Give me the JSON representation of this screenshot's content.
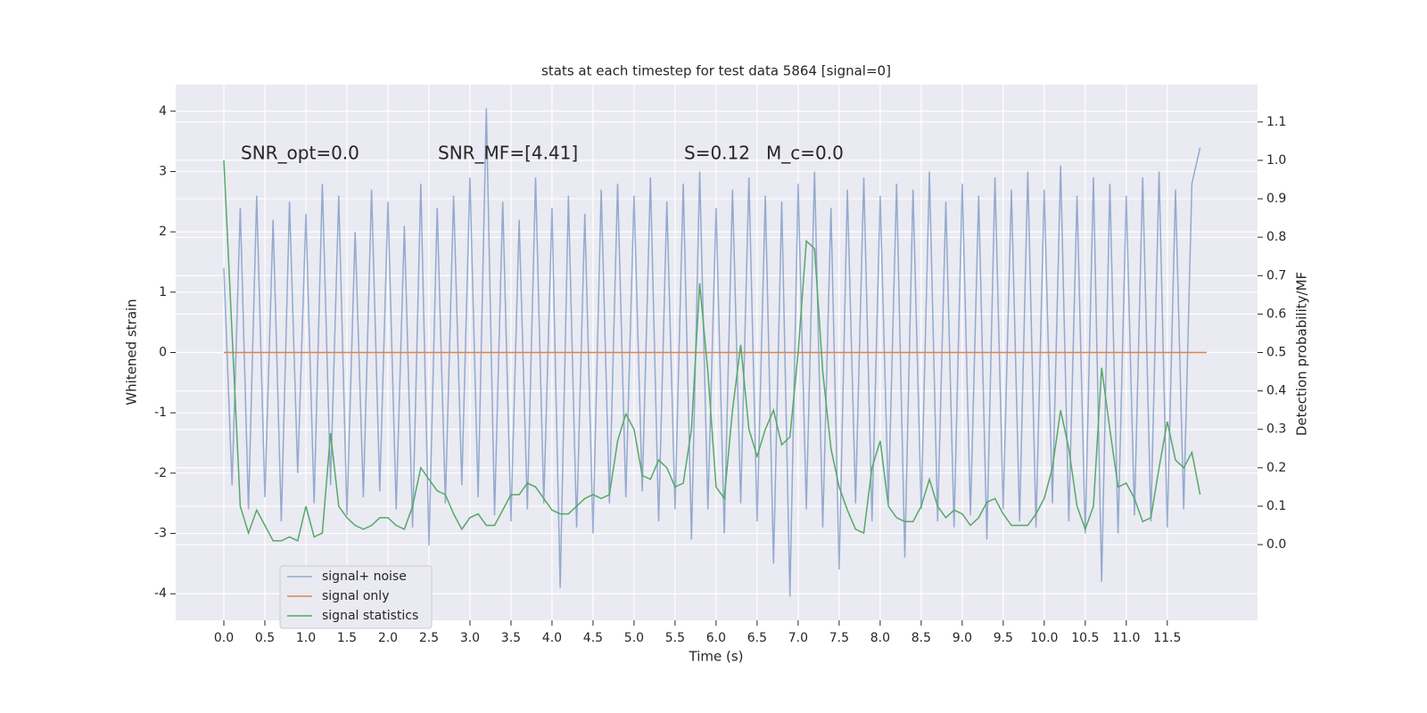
{
  "chart_data": {
    "type": "line",
    "title": "stats at each timestep for test data 5864 [signal=0]",
    "xlabel": "Time (s)",
    "ylabel": "Whitened strain",
    "y2label": "Detection probability/MF",
    "annotations": [
      "SNR_opt=0.0",
      "SNR_MF=[4.41]",
      "S=0.12",
      "M_c=0.0"
    ],
    "xlim": [
      -0.587,
      12.6
    ],
    "ylim": [
      -4.44,
      4.44
    ],
    "y2lim": [
      -0.197,
      1.197
    ],
    "xticks": [
      {
        "value": 0,
        "label": "0.0"
      },
      0.5,
      {
        "value": 1,
        "label": "1.0"
      },
      1.5,
      {
        "value": 2,
        "label": "2.0"
      },
      2.5,
      {
        "value": 3,
        "label": "3.0"
      },
      3.5,
      {
        "value": 4,
        "label": "4.0"
      },
      4.5,
      {
        "value": 5,
        "label": "5.0"
      },
      5.5,
      {
        "value": 6,
        "label": "6.0"
      },
      6.5,
      {
        "value": 7,
        "label": "7.0"
      },
      7.5,
      {
        "value": 8,
        "label": "8.0"
      },
      8.5,
      {
        "value": 9,
        "label": "9.0"
      },
      9.5,
      {
        "value": 10,
        "label": "10.0"
      },
      10.5,
      {
        "value": 11,
        "label": "11.0"
      },
      11.5
    ],
    "yticks": [
      -4,
      -3,
      -2,
      -1,
      0,
      1,
      2,
      3,
      4
    ],
    "y2ticks": [
      {
        "value": 0,
        "label": "0.0"
      },
      0.1,
      0.2,
      0.3,
      0.4,
      0.5,
      0.6,
      0.7,
      0.8,
      0.9,
      {
        "value": 1,
        "label": "1.0"
      },
      1.1
    ],
    "grid": true,
    "legend": "lower left",
    "x": [
      0,
      0.1,
      0.2,
      0.3,
      0.4,
      0.5,
      0.6,
      0.7,
      0.8,
      0.9,
      1,
      1.1,
      1.2,
      1.3,
      1.4,
      1.5,
      1.6,
      1.7,
      1.8,
      1.9,
      2,
      2.1,
      2.2,
      2.3,
      2.4,
      2.5,
      2.6,
      2.7,
      2.8,
      2.9,
      3,
      3.1,
      3.2,
      3.3,
      3.4,
      3.5,
      3.6,
      3.7,
      3.8,
      3.9,
      4,
      4.1,
      4.2,
      4.3,
      4.4,
      4.5,
      4.6,
      4.7,
      4.8,
      4.9,
      5,
      5.1,
      5.2,
      5.3,
      5.4,
      5.5,
      5.6,
      5.7,
      5.8,
      5.9,
      6,
      6.1,
      6.2,
      6.3,
      6.4,
      6.5,
      6.6,
      6.7,
      6.8,
      6.9,
      7,
      7.1,
      7.2,
      7.3,
      7.4,
      7.5,
      7.6,
      7.7,
      7.8,
      7.9,
      8,
      8.1,
      8.2,
      8.3,
      8.4,
      8.5,
      8.6,
      8.7,
      8.8,
      8.9,
      9,
      9.1,
      9.2,
      9.3,
      9.4,
      9.5,
      9.6,
      9.7,
      9.8,
      9.9,
      10,
      10.1,
      10.2,
      10.3,
      10.4,
      10.5,
      10.6,
      10.7,
      10.8,
      10.9,
      11,
      11.1,
      11.2,
      11.3,
      11.4,
      11.5,
      11.6,
      11.7,
      11.8,
      11.9
    ],
    "series": [
      {
        "name": "signal+ noise",
        "color": "#4c72b0",
        "values": [
          1.4,
          -2.2,
          2.4,
          -2.6,
          2.6,
          -2.4,
          2.2,
          -2.8,
          2.5,
          -2.0,
          2.3,
          -2.5,
          2.8,
          -2.2,
          2.6,
          -2.7,
          2.0,
          -2.4,
          2.7,
          -2.3,
          2.5,
          -2.6,
          2.1,
          -2.9,
          2.8,
          -3.2,
          2.4,
          -2.5,
          2.6,
          -2.2,
          2.9,
          -2.4,
          4.05,
          -2.7,
          2.5,
          -2.8,
          2.2,
          -2.6,
          2.9,
          -2.5,
          2.4,
          -3.9,
          2.6,
          -2.9,
          2.3,
          -3.0,
          2.7,
          -2.5,
          2.8,
          -2.4,
          2.6,
          -2.3,
          2.9,
          -2.8,
          2.5,
          -2.6,
          2.8,
          -3.1,
          3.0,
          -2.6,
          2.4,
          -3.0,
          2.7,
          -2.5,
          2.9,
          -2.8,
          2.6,
          -3.5,
          2.5,
          -4.05,
          2.8,
          -2.6,
          3.0,
          -2.9,
          2.4,
          -3.6,
          2.7,
          -2.5,
          2.9,
          -2.8,
          2.6,
          -2.5,
          2.8,
          -3.4,
          2.7,
          -2.6,
          3.0,
          -2.8,
          2.5,
          -2.9,
          2.8,
          -2.7,
          2.6,
          -3.1,
          2.9,
          -2.6,
          2.7,
          -2.8,
          3.0,
          -2.9,
          2.7,
          -2.5,
          3.1,
          -2.8,
          2.6,
          -3.0,
          2.9,
          -3.8,
          2.8,
          -3.0,
          2.6,
          -2.7,
          2.9,
          -2.8,
          3.0,
          -2.9,
          2.7,
          -2.6,
          2.8,
          3.4
        ]
      },
      {
        "name": "signal only",
        "color": "#dd8452",
        "x": [
          0,
          11.98
        ],
        "values": [
          0,
          0
        ]
      },
      {
        "name": "signal statistics",
        "color": "#55a868",
        "axis": "y2",
        "values": [
          1.0,
          0.55,
          0.1,
          0.03,
          0.09,
          0.05,
          0.01,
          0.01,
          0.02,
          0.01,
          0.1,
          0.02,
          0.03,
          0.29,
          0.1,
          0.07,
          0.05,
          0.04,
          0.05,
          0.07,
          0.07,
          0.05,
          0.04,
          0.1,
          0.2,
          0.17,
          0.14,
          0.13,
          0.08,
          0.04,
          0.07,
          0.08,
          0.05,
          0.05,
          0.09,
          0.13,
          0.13,
          0.16,
          0.15,
          0.12,
          0.09,
          0.08,
          0.08,
          0.1,
          0.12,
          0.13,
          0.12,
          0.13,
          0.27,
          0.34,
          0.3,
          0.18,
          0.17,
          0.22,
          0.2,
          0.15,
          0.16,
          0.3,
          0.68,
          0.45,
          0.15,
          0.12,
          0.35,
          0.52,
          0.3,
          0.23,
          0.3,
          0.35,
          0.26,
          0.28,
          0.5,
          0.79,
          0.77,
          0.45,
          0.25,
          0.15,
          0.09,
          0.04,
          0.03,
          0.2,
          0.27,
          0.1,
          0.07,
          0.06,
          0.06,
          0.1,
          0.17,
          0.1,
          0.07,
          0.09,
          0.08,
          0.05,
          0.07,
          0.11,
          0.12,
          0.08,
          0.05,
          0.05,
          0.05,
          0.08,
          0.12,
          0.2,
          0.35,
          0.25,
          0.1,
          0.04,
          0.1,
          0.46,
          0.3,
          0.15,
          0.16,
          0.12,
          0.06,
          0.07,
          0.2,
          0.32,
          0.22,
          0.2,
          0.24,
          0.13
        ]
      }
    ]
  }
}
